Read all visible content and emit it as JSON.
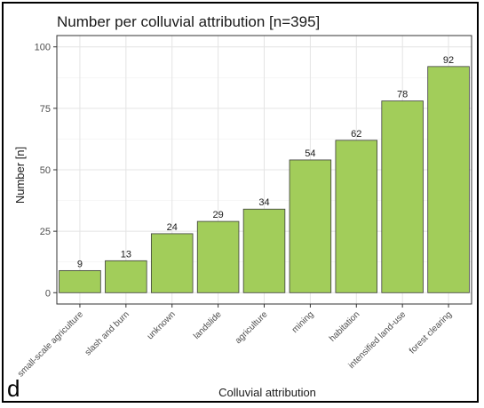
{
  "panel_label": "d",
  "colors": {
    "bar_fill": "#a2cd5a",
    "bar_stroke": "#3d3d3d",
    "grid": "#e4e4e4",
    "panel_border": "#333333",
    "text": "#1a1a1a"
  },
  "chart_data": {
    "type": "bar",
    "title": "Number per colluvial attribution [n=395]",
    "xlabel": "Colluvial attribution",
    "ylabel": "Number [n]",
    "categories": [
      "small-scale agriculture",
      "slash and burn",
      "unknown",
      "landslide",
      "agriculture",
      "mining",
      "habitation",
      "intensified land-use",
      "forest clearing"
    ],
    "values": [
      9,
      13,
      24,
      29,
      34,
      54,
      62,
      78,
      92
    ],
    "ylim": [
      -4.6,
      104.6
    ],
    "yticks": [
      0,
      25,
      50,
      75,
      100
    ],
    "grid": true,
    "legend": "none"
  }
}
